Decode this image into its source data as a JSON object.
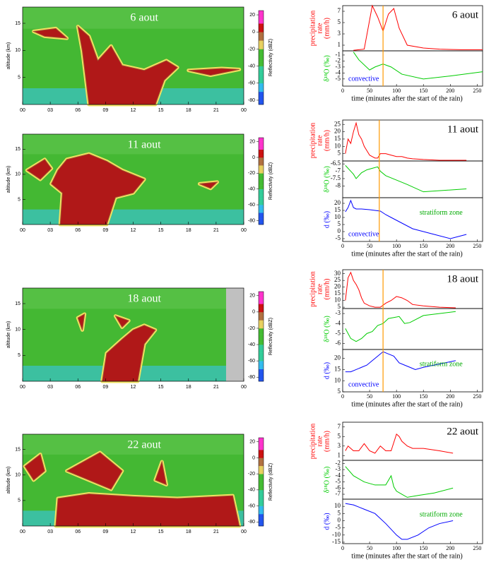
{
  "chart_data": [
    {
      "type": "heatmap",
      "title": "6 aout",
      "ylabel": "altitude (km)",
      "categories": [
        "00",
        "03",
        "06",
        "09",
        "12",
        "15",
        "18",
        "21",
        "00"
      ],
      "ylim": [
        0,
        18
      ],
      "yticks": [
        5,
        10,
        15
      ],
      "colorbar": {
        "label": "Reflectivity (dBZ)",
        "lim": [
          -85,
          25
        ],
        "ticks": [
          20,
          0,
          -20,
          -40,
          -60,
          -80
        ]
      }
    },
    {
      "type": "line",
      "title": "6 aout",
      "xlabel": "time (minutes after the start of the rain)",
      "xlim": [
        0,
        260
      ],
      "xticks": [
        0,
        50,
        100,
        150,
        200,
        250
      ],
      "marker_x": 75,
      "annotations": [
        {
          "text": "convective",
          "color": "#0000ff"
        }
      ],
      "panels": [
        {
          "ylabel": [
            "precipitation",
            "rate",
            "(mm/h)"
          ],
          "ylim": [
            0,
            8
          ],
          "yticks": [
            1,
            3,
            5,
            7
          ],
          "series": [
            {
              "color": "#ff0000",
              "x": [
                20,
                40,
                55,
                65,
                75,
                85,
                95,
                105,
                120,
                150,
                180,
                220,
                260
              ],
              "values": [
                0.1,
                0.3,
                8,
                6,
                3.5,
                6.5,
                7.5,
                4,
                1,
                0.5,
                0.3,
                0.2,
                0.2
              ]
            }
          ]
        },
        {
          "ylabel": [
            "δ¹⁸O (‰)"
          ],
          "ylim": [
            -6.2,
            -0.3
          ],
          "yticks": [
            -1,
            -2,
            -3,
            -4,
            -5
          ],
          "series": [
            {
              "color": "#00cc00",
              "x": [
                20,
                30,
                50,
                60,
                75,
                90,
                110,
                150,
                200,
                260
              ],
              "values": [
                -0.5,
                -1.8,
                -3.5,
                -3,
                -2.5,
                -3,
                -4.2,
                -5,
                -4.5,
                -3.8
              ]
            }
          ]
        }
      ]
    },
    {
      "type": "heatmap",
      "title": "11 aout",
      "ylabel": "altitude (km)",
      "categories": [
        "00",
        "03",
        "06",
        "09",
        "12",
        "15",
        "18",
        "21",
        "00"
      ],
      "ylim": [
        0,
        18
      ],
      "yticks": [
        5,
        10,
        15
      ],
      "colorbar": {
        "label": "Reflectivity (dBZ)",
        "lim": [
          -85,
          25
        ],
        "ticks": [
          20,
          0,
          -20,
          -40,
          -60,
          -80
        ]
      }
    },
    {
      "type": "line",
      "title": "11 aout",
      "xlabel": "time (minutes after the start of the rain)",
      "xlim": [
        0,
        260
      ],
      "xticks": [
        0,
        50,
        100,
        150,
        200,
        250
      ],
      "marker_x": 68,
      "annotations": [
        {
          "text": "convective",
          "color": "#0000ff"
        },
        {
          "text": "stratiform zone",
          "color": "#00aa00"
        }
      ],
      "panels": [
        {
          "ylabel": [
            "precipitation",
            "rate",
            "(mm/h)"
          ],
          "ylim": [
            0,
            28
          ],
          "yticks": [
            5,
            10,
            15,
            20,
            25
          ],
          "series": [
            {
              "color": "#ff0000",
              "x": [
                5,
                10,
                15,
                20,
                25,
                30,
                35,
                40,
                45,
                50,
                55,
                60,
                65,
                70,
                80,
                90,
                100,
                110,
                120,
                130,
                150,
                180,
                230
              ],
              "values": [
                5,
                15,
                12,
                20,
                26,
                18,
                15,
                10,
                7,
                4,
                3,
                2,
                2,
                5,
                5,
                4,
                3,
                3,
                2,
                1.5,
                1,
                0.5,
                0.5
              ]
            }
          ]
        },
        {
          "ylabel": [
            "δ¹⁸O (‰)"
          ],
          "ylim": [
            -8.8,
            -6.3
          ],
          "yticks": [
            -6.5,
            -7,
            -7.5,
            -8
          ],
          "series": [
            {
              "color": "#00cc00",
              "x": [
                5,
                15,
                20,
                25,
                35,
                45,
                55,
                65,
                70,
                80,
                100,
                120,
                150,
                230
              ],
              "values": [
                -6.6,
                -7,
                -7.2,
                -7.5,
                -7.1,
                -6.9,
                -6.8,
                -6.7,
                -7,
                -7.3,
                -7.6,
                -7.9,
                -8.4,
                -8.2
              ]
            }
          ]
        },
        {
          "ylabel": [
            "d (‰)"
          ],
          "ylim": [
            -7,
            24
          ],
          "yticks": [
            -5,
            0,
            5,
            10,
            15,
            20
          ],
          "series": [
            {
              "color": "#0000ff",
              "x": [
                5,
                10,
                15,
                20,
                25,
                35,
                50,
                70,
                80,
                90,
                100,
                110,
                130,
                150,
                170,
                200,
                230
              ],
              "values": [
                14,
                17,
                22,
                17,
                16,
                16,
                15.5,
                14.5,
                12,
                10,
                8,
                6,
                2,
                0,
                -2,
                -5,
                -2
              ]
            }
          ]
        }
      ]
    },
    {
      "type": "heatmap",
      "title": "18 aout",
      "ylabel": "altitude (km)",
      "categories": [
        "00",
        "03",
        "06",
        "09",
        "12",
        "15",
        "18",
        "21",
        "00"
      ],
      "ylim": [
        0,
        18
      ],
      "yticks": [
        5,
        10,
        15
      ],
      "colorbar": {
        "label": "Reflectivity (dBZ)",
        "lim": [
          -85,
          25
        ],
        "ticks": [
          20,
          0,
          -20,
          -40,
          -60,
          -80
        ]
      }
    },
    {
      "type": "line",
      "title": "18 aout",
      "xlabel": "time (minutes after the start of the rain)",
      "xlim": [
        0,
        260
      ],
      "xticks": [
        0,
        50,
        100,
        150,
        200,
        250
      ],
      "marker_x": 75,
      "annotations": [
        {
          "text": "convective",
          "color": "#0000ff"
        },
        {
          "text": "stratiform zone",
          "color": "#00aa00"
        }
      ],
      "panels": [
        {
          "ylabel": [
            "precipitation",
            "rate",
            "(mm/h)"
          ],
          "ylim": [
            4,
            33
          ],
          "yticks": [
            5,
            10,
            15,
            20,
            25,
            30
          ],
          "series": [
            {
              "color": "#ff0000",
              "x": [
                5,
                10,
                15,
                20,
                25,
                30,
                35,
                40,
                50,
                60,
                70,
                80,
                90,
                100,
                110,
                120,
                130,
                150,
                180,
                210
              ],
              "values": [
                10,
                27,
                31,
                25,
                22,
                18,
                12,
                8,
                6,
                5,
                5,
                8,
                10,
                13,
                12,
                10,
                7,
                6,
                5,
                4.5
              ]
            }
          ]
        },
        {
          "ylabel": [
            "δ¹⁸O (‰)"
          ],
          "ylim": [
            -6.6,
            -2.5
          ],
          "yticks": [
            -3,
            -4,
            -5,
            -6
          ],
          "series": [
            {
              "color": "#00cc00",
              "x": [
                5,
                15,
                25,
                35,
                45,
                55,
                65,
                75,
                85,
                95,
                105,
                115,
                125,
                150,
                210
              ],
              "values": [
                -4.5,
                -5.5,
                -5.8,
                -5.5,
                -5,
                -4.8,
                -4.2,
                -4,
                -3.5,
                -3.4,
                -3.3,
                -4,
                -3.9,
                -3.2,
                -2.8
              ]
            }
          ]
        },
        {
          "ylabel": [
            "d (‰)"
          ],
          "ylim": [
            5,
            24
          ],
          "yticks": [
            5,
            10,
            15,
            20
          ],
          "series": [
            {
              "color": "#0000ff",
              "x": [
                5,
                15,
                25,
                35,
                45,
                55,
                65,
                75,
                85,
                95,
                105,
                115,
                125,
                135,
                150,
                210
              ],
              "values": [
                14,
                14,
                15,
                16,
                17,
                19,
                21,
                23,
                22,
                21,
                18,
                17,
                16,
                15,
                16,
                19
              ]
            }
          ]
        }
      ]
    },
    {
      "type": "heatmap",
      "title": "22 aout",
      "ylabel": "altitude (km)",
      "categories": [
        "00",
        "03",
        "06",
        "09",
        "12",
        "15",
        "18",
        "21",
        "00"
      ],
      "ylim": [
        0,
        18
      ],
      "yticks": [
        5,
        10,
        15
      ],
      "colorbar": {
        "label": "Reflectivity (dBZ)",
        "lim": [
          -85,
          25
        ],
        "ticks": [
          20,
          0,
          -20,
          -40,
          -60,
          -80
        ]
      }
    },
    {
      "type": "line",
      "title": "22 aout",
      "xlabel": "time (minutes after the start of the rain)",
      "xlim": [
        0,
        260
      ],
      "xticks": [
        0,
        50,
        100,
        150,
        200,
        250
      ],
      "annotations": [
        {
          "text": "stratiform zone",
          "color": "#00aa00"
        }
      ],
      "panels": [
        {
          "ylabel": [
            "precipitation",
            "rate",
            "(mm/h)"
          ],
          "ylim": [
            0,
            8
          ],
          "yticks": [
            1,
            3,
            5,
            7
          ],
          "series": [
            {
              "color": "#ff0000",
              "x": [
                5,
                10,
                20,
                30,
                40,
                50,
                60,
                70,
                80,
                90,
                100,
                105,
                110,
                120,
                130,
                150,
                180,
                205
              ],
              "values": [
                2,
                3,
                2,
                2,
                3.5,
                2,
                1.5,
                3,
                2,
                2,
                5.5,
                5,
                4,
                3,
                2.5,
                2.5,
                2,
                1.5
              ]
            }
          ]
        },
        {
          "ylabel": [
            "δ¹⁸O (‰)"
          ],
          "ylim": [
            -7.8,
            -1.5
          ],
          "yticks": [
            -2,
            -3,
            -4,
            -5,
            -6,
            -7
          ],
          "series": [
            {
              "color": "#00cc00",
              "x": [
                5,
                20,
                40,
                60,
                80,
                90,
                95,
                100,
                110,
                120,
                140,
                170,
                205
              ],
              "values": [
                -2.5,
                -4,
                -5,
                -5.5,
                -5.5,
                -4,
                -5.8,
                -6.5,
                -7,
                -7.5,
                -7.2,
                -6.8,
                -6
              ]
            }
          ]
        },
        {
          "ylabel": [
            "d (‰)"
          ],
          "ylim": [
            -16,
            15
          ],
          "yticks": [
            -15,
            -10,
            -5,
            0,
            5,
            10
          ],
          "series": [
            {
              "color": "#0000ff",
              "x": [
                5,
                20,
                40,
                60,
                80,
                100,
                110,
                120,
                140,
                160,
                180,
                205
              ],
              "values": [
                12,
                11,
                8,
                5,
                -2,
                -10,
                -13,
                -13,
                -10,
                -5,
                -2,
                0
              ]
            }
          ]
        }
      ]
    }
  ]
}
